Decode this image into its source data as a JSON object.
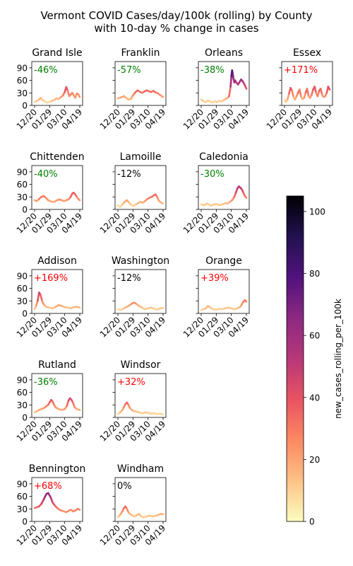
{
  "figure": {
    "title_line1": "Vermont COVID Cases/day/100k (rolling) by County",
    "title_line2": "with 10-day % change in cases"
  },
  "colorbar": {
    "label": "new_cases_rolling_per_100k",
    "range": [
      0,
      105
    ],
    "ticks": [
      0,
      20,
      40,
      60,
      80,
      100
    ],
    "colormap": "magma_r",
    "stops": [
      "#fcfdbf",
      "#fec287",
      "#fc8961",
      "#e85362",
      "#b73779",
      "#8c2981",
      "#51127c",
      "#221150",
      "#000004"
    ]
  },
  "chart_data": [
    {
      "type": "line",
      "title": "Grand Isle",
      "change_label": "-46%",
      "change_color": "#008000",
      "ylim": [
        0,
        105
      ],
      "yticks": [
        0,
        30,
        60,
        90
      ],
      "xticks": [
        "12/20",
        "01/29",
        "03/10",
        "04/19"
      ],
      "x": [
        0,
        6,
        12,
        16,
        20,
        26,
        34,
        40,
        46,
        52,
        58,
        64,
        68,
        72,
        76,
        80,
        84,
        88,
        92,
        96,
        100,
        104,
        108,
        112,
        116,
        120
      ],
      "values": [
        8,
        11,
        14,
        18,
        14,
        10,
        7,
        9,
        11,
        13,
        17,
        15,
        19,
        21,
        25,
        32,
        44,
        35,
        22,
        26,
        30,
        24,
        18,
        28,
        27,
        20
      ]
    },
    {
      "type": "line",
      "title": "Franklin",
      "change_label": "-57%",
      "change_color": "#008000",
      "ylim": [
        0,
        105
      ],
      "yticks": [
        0,
        30,
        60,
        90
      ],
      "xticks": [
        "12/20",
        "01/29",
        "03/10",
        "04/19"
      ],
      "x": [
        0,
        8,
        16,
        22,
        28,
        34,
        40,
        46,
        52,
        58,
        64,
        70,
        76,
        82,
        88,
        94,
        100,
        106,
        112,
        120
      ],
      "values": [
        17,
        19,
        22,
        18,
        14,
        15,
        24,
        31,
        36,
        33,
        30,
        33,
        36,
        34,
        32,
        35,
        31,
        29,
        25,
        20
      ]
    },
    {
      "type": "line",
      "title": "Orleans",
      "change_label": "-38%",
      "change_color": "#008000",
      "ylim": [
        0,
        105
      ],
      "yticks": [
        0,
        30,
        60,
        90
      ],
      "xticks": [
        "12/20",
        "01/29",
        "03/10",
        "04/19"
      ],
      "x": [
        0,
        6,
        12,
        18,
        24,
        30,
        36,
        42,
        48,
        54,
        60,
        66,
        70,
        74,
        78,
        80,
        82,
        84,
        86,
        88,
        90,
        94,
        98,
        102,
        106,
        110,
        114,
        118,
        120
      ],
      "values": [
        14,
        10,
        8,
        12,
        9,
        7,
        10,
        8,
        11,
        9,
        13,
        16,
        18,
        22,
        45,
        70,
        84,
        75,
        62,
        55,
        60,
        54,
        50,
        56,
        62,
        58,
        52,
        44,
        40
      ]
    },
    {
      "type": "line",
      "title": "Essex",
      "change_label": "+171%",
      "change_color": "#ff0000",
      "ylim": [
        0,
        105
      ],
      "yticks": [
        0,
        30,
        60,
        90
      ],
      "xticks": [
        "12/20",
        "01/29",
        "03/10",
        "04/19"
      ],
      "x": [
        0,
        4,
        8,
        12,
        16,
        20,
        24,
        28,
        32,
        36,
        40,
        44,
        48,
        52,
        56,
        60,
        64,
        68,
        72,
        76,
        80,
        84,
        88,
        92,
        96,
        100,
        104,
        108,
        112,
        116,
        120
      ],
      "values": [
        12,
        8,
        15,
        28,
        42,
        35,
        20,
        14,
        22,
        30,
        38,
        20,
        15,
        18,
        30,
        40,
        22,
        18,
        25,
        38,
        45,
        30,
        22,
        35,
        40,
        25,
        20,
        22,
        30,
        45,
        38
      ]
    },
    {
      "type": "line",
      "title": "Chittenden",
      "change_label": "-40%",
      "change_color": "#008000",
      "ylim": [
        0,
        105
      ],
      "yticks": [
        0,
        30,
        60,
        90
      ],
      "xticks": [
        "12/20",
        "01/29",
        "03/10",
        "04/19"
      ],
      "x": [
        0,
        6,
        12,
        18,
        24,
        30,
        36,
        42,
        48,
        54,
        60,
        66,
        72,
        78,
        84,
        90,
        96,
        100,
        104,
        108,
        112,
        116,
        120
      ],
      "values": [
        22,
        20,
        25,
        30,
        32,
        28,
        22,
        20,
        18,
        19,
        22,
        24,
        22,
        20,
        22,
        24,
        30,
        38,
        40,
        36,
        30,
        25,
        22
      ]
    },
    {
      "type": "line",
      "title": "Lamoille",
      "change_label": "-12%",
      "change_color": "#000000",
      "ylim": [
        0,
        105
      ],
      "yticks": [
        0,
        30,
        60,
        90
      ],
      "xticks": [
        "12/20",
        "01/29",
        "03/10",
        "04/19"
      ],
      "x": [
        0,
        6,
        12,
        18,
        24,
        30,
        36,
        42,
        48,
        54,
        60,
        66,
        72,
        78,
        84,
        90,
        96,
        100,
        104,
        108,
        112,
        116,
        120
      ],
      "values": [
        10,
        6,
        12,
        18,
        22,
        16,
        10,
        8,
        12,
        15,
        18,
        16,
        20,
        25,
        28,
        30,
        34,
        36,
        30,
        22,
        18,
        16,
        14
      ]
    },
    {
      "type": "line",
      "title": "Caledonia",
      "change_label": "-30%",
      "change_color": "#008000",
      "ylim": [
        0,
        105
      ],
      "yticks": [
        0,
        30,
        60,
        90
      ],
      "xticks": [
        "12/20",
        "01/29",
        "03/10",
        "04/19"
      ],
      "x": [
        0,
        8,
        16,
        24,
        32,
        40,
        48,
        56,
        64,
        70,
        76,
        82,
        88,
        92,
        96,
        100,
        104,
        108,
        112,
        116,
        120
      ],
      "values": [
        12,
        10,
        14,
        9,
        11,
        13,
        10,
        12,
        15,
        14,
        18,
        22,
        30,
        40,
        50,
        55,
        52,
        48,
        40,
        32,
        28
      ]
    },
    {
      "type": "line",
      "title": "Addison",
      "change_label": "+169%",
      "change_color": "#ff0000",
      "ylim": [
        0,
        105
      ],
      "yticks": [
        0,
        30,
        60,
        90
      ],
      "xticks": [
        "12/20",
        "01/29",
        "03/10",
        "04/19"
      ],
      "x": [
        0,
        4,
        8,
        12,
        16,
        20,
        24,
        28,
        32,
        40,
        48,
        56,
        64,
        72,
        80,
        88,
        96,
        104,
        112,
        120
      ],
      "values": [
        10,
        18,
        30,
        50,
        44,
        30,
        22,
        18,
        15,
        14,
        12,
        16,
        20,
        18,
        15,
        14,
        12,
        15,
        16,
        14
      ]
    },
    {
      "type": "line",
      "title": "Washington",
      "change_label": "-12%",
      "change_color": "#000000",
      "ylim": [
        0,
        105
      ],
      "yticks": [
        0,
        30,
        60,
        90
      ],
      "xticks": [
        "12/20",
        "01/29",
        "03/10",
        "04/19"
      ],
      "x": [
        0,
        8,
        16,
        24,
        32,
        38,
        44,
        50,
        56,
        64,
        72,
        80,
        88,
        96,
        104,
        112,
        120
      ],
      "values": [
        10,
        8,
        12,
        16,
        20,
        24,
        26,
        22,
        18,
        14,
        10,
        12,
        14,
        11,
        9,
        12,
        13
      ]
    },
    {
      "type": "line",
      "title": "Orange",
      "change_label": "+39%",
      "change_color": "#ff0000",
      "ylim": [
        0,
        105
      ],
      "yticks": [
        0,
        30,
        60,
        90
      ],
      "xticks": [
        "12/20",
        "01/29",
        "03/10",
        "04/19"
      ],
      "x": [
        0,
        6,
        12,
        18,
        24,
        32,
        40,
        48,
        56,
        64,
        72,
        80,
        88,
        96,
        100,
        104,
        108,
        112,
        116,
        120
      ],
      "values": [
        8,
        10,
        12,
        18,
        14,
        10,
        9,
        11,
        10,
        12,
        14,
        12,
        10,
        12,
        14,
        16,
        22,
        28,
        32,
        28
      ]
    },
    {
      "type": "line",
      "title": "Rutland",
      "change_label": "-36%",
      "change_color": "#008000",
      "ylim": [
        0,
        105
      ],
      "yticks": [
        0,
        30,
        60,
        90
      ],
      "xticks": [
        "12/20",
        "01/29",
        "03/10",
        "04/19"
      ],
      "x": [
        0,
        6,
        12,
        18,
        24,
        30,
        36,
        40,
        44,
        48,
        52,
        56,
        64,
        72,
        80,
        86,
        90,
        94,
        98,
        102,
        106,
        112,
        120
      ],
      "values": [
        12,
        15,
        18,
        20,
        22,
        26,
        30,
        36,
        42,
        38,
        30,
        24,
        20,
        18,
        20,
        28,
        40,
        46,
        42,
        35,
        25,
        20,
        18
      ]
    },
    {
      "type": "line",
      "title": "Windsor",
      "change_label": "+32%",
      "change_color": "#ff0000",
      "ylim": [
        0,
        105
      ],
      "yticks": [
        0,
        30,
        60,
        90
      ],
      "xticks": [
        "12/20",
        "01/29",
        "03/10",
        "04/19"
      ],
      "x": [
        0,
        6,
        12,
        16,
        20,
        24,
        28,
        32,
        40,
        48,
        56,
        64,
        72,
        80,
        88,
        96,
        104,
        112,
        120
      ],
      "values": [
        8,
        12,
        18,
        25,
        32,
        36,
        30,
        22,
        16,
        14,
        12,
        10,
        12,
        11,
        9,
        10,
        8,
        9,
        7
      ]
    },
    {
      "type": "line",
      "title": "Bennington",
      "change_label": "+68%",
      "change_color": "#ff0000",
      "ylim": [
        0,
        105
      ],
      "yticks": [
        0,
        30,
        60,
        90
      ],
      "xticks": [
        "12/20",
        "01/29",
        "03/10",
        "04/19"
      ],
      "x": [
        0,
        6,
        12,
        18,
        24,
        28,
        32,
        36,
        40,
        44,
        48,
        54,
        60,
        66,
        72,
        78,
        84,
        90,
        96,
        102,
        108,
        114,
        120
      ],
      "values": [
        32,
        34,
        36,
        42,
        52,
        60,
        66,
        68,
        62,
        55,
        45,
        38,
        32,
        28,
        26,
        24,
        22,
        25,
        28,
        24,
        26,
        30,
        28
      ]
    },
    {
      "type": "line",
      "title": "Windham",
      "change_label": "0%",
      "change_color": "#000000",
      "ylim": [
        0,
        105
      ],
      "yticks": [
        0,
        30,
        60,
        90
      ],
      "xticks": [
        "12/20",
        "01/29",
        "03/10",
        "04/19"
      ],
      "x": [
        0,
        6,
        12,
        16,
        20,
        24,
        28,
        32,
        38,
        44,
        50,
        56,
        62,
        68,
        76,
        84,
        92,
        100,
        108,
        114,
        120
      ],
      "values": [
        10,
        16,
        24,
        32,
        36,
        30,
        22,
        18,
        14,
        12,
        15,
        18,
        12,
        10,
        12,
        14,
        12,
        13,
        16,
        18,
        17
      ]
    }
  ]
}
